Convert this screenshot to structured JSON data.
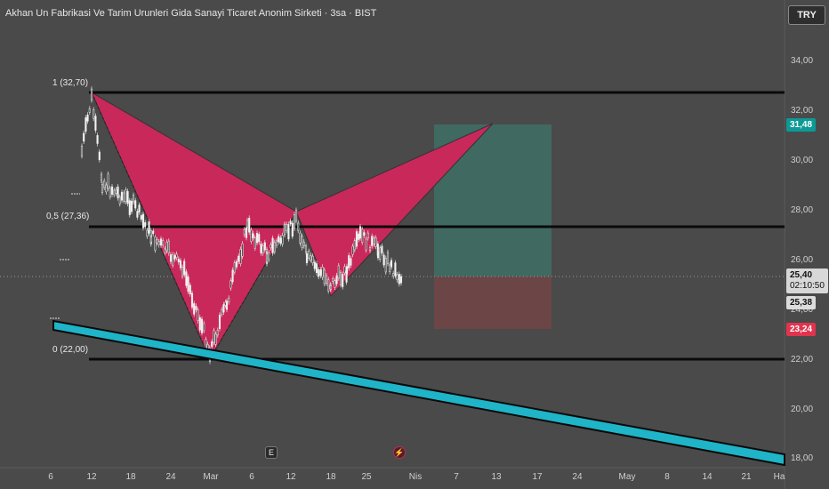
{
  "header": {
    "title": "Akhan Un Fabrikasi Ve Tarim Urunleri Gida Sanayi Ticaret Anonim Sirketi · 3sa · BIST",
    "currency": "TRY"
  },
  "price_axis": {
    "labels": [
      "34,00",
      "32,00",
      "30,00",
      "28,00",
      "26,00",
      "24,00",
      "22,00",
      "20,00",
      "18,00"
    ]
  },
  "time_axis": {
    "labels": [
      "6",
      "12",
      "18",
      "24",
      "Mar",
      "6",
      "12",
      "18",
      "25",
      "Nis",
      "7",
      "13",
      "17",
      "24",
      "May",
      "8",
      "14",
      "21",
      "Ha"
    ]
  },
  "price_tags": {
    "target": "31,48",
    "last_price": "25,40",
    "countdown": "02:10:50",
    "second_price": "25,38",
    "stop": "23,24"
  },
  "fib_levels": [
    {
      "label": "1 (32,70)"
    },
    {
      "label": "0,5 (27,36)"
    },
    {
      "label": "0 (22,00)"
    }
  ],
  "events": {
    "earnings_icon": "E",
    "dividend_icon": "lightning-icon"
  },
  "colors": {
    "background": "#4a4a4a",
    "harmonic_pattern": "#c8285a",
    "trendline": "#1fb4c8",
    "target_zone": "#3f6a62",
    "stop_zone": "#6e4646",
    "target_tag": "#0c9a96",
    "stop_tag": "#e0344e"
  }
}
